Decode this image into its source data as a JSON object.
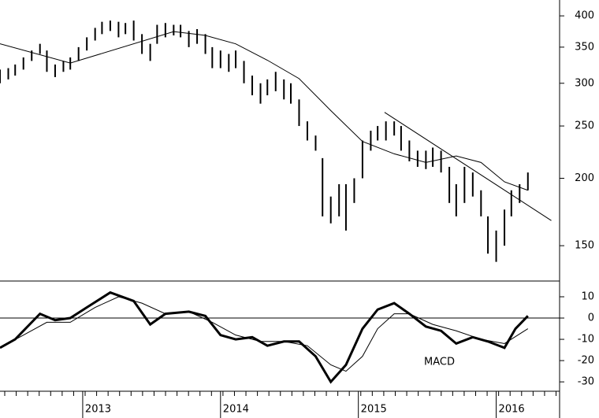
{
  "chart_data": [
    {
      "type": "hilo",
      "log": true,
      "color": "#000",
      "ylim": [
        129,
        428
      ],
      "yticks": [
        150,
        200,
        250,
        300,
        350,
        400
      ],
      "xlim": [
        2012.4,
        2016.46
      ],
      "x": [
        2012.4,
        2012.46,
        2012.51,
        2012.57,
        2012.63,
        2012.69,
        2012.74,
        2012.8,
        2012.86,
        2012.91,
        2012.97,
        2013.03,
        2013.09,
        2013.14,
        2013.2,
        2013.26,
        2013.31,
        2013.37,
        2013.43,
        2013.49,
        2013.54,
        2013.6,
        2013.66,
        2013.71,
        2013.77,
        2013.83,
        2013.89,
        2013.94,
        2014.0,
        2014.06,
        2014.11,
        2014.17,
        2014.23,
        2014.29,
        2014.34,
        2014.4,
        2014.46,
        2014.51,
        2014.57,
        2014.63,
        2014.69,
        2014.74,
        2014.8,
        2014.86,
        2014.91,
        2014.97,
        2015.03,
        2015.09,
        2015.14,
        2015.2,
        2015.26,
        2015.31,
        2015.37,
        2015.43,
        2015.49,
        2015.54,
        2015.6,
        2015.66,
        2015.71,
        2015.77,
        2015.83,
        2015.89,
        2015.94,
        2016.0,
        2016.06,
        2016.11,
        2016.17,
        2016.23
      ],
      "high": [
        318,
        320,
        325,
        335,
        345,
        355,
        345,
        325,
        330,
        335,
        350,
        365,
        380,
        390,
        392,
        390,
        388,
        392,
        370,
        355,
        385,
        388,
        385,
        385,
        375,
        378,
        370,
        350,
        345,
        340,
        345,
        330,
        310,
        300,
        305,
        315,
        305,
        300,
        280,
        255,
        240,
        218,
        185,
        195,
        195,
        200,
        235,
        245,
        250,
        255,
        255,
        250,
        235,
        225,
        225,
        228,
        225,
        210,
        195,
        210,
        205,
        190,
        170,
        160,
        175,
        190,
        195,
        205
      ],
      "low": [
        300,
        305,
        310,
        318,
        330,
        340,
        315,
        308,
        315,
        318,
        330,
        345,
        360,
        370,
        375,
        365,
        370,
        360,
        340,
        330,
        355,
        365,
        368,
        365,
        350,
        355,
        340,
        320,
        320,
        315,
        320,
        300,
        285,
        275,
        285,
        290,
        280,
        275,
        250,
        235,
        225,
        170,
        165,
        170,
        160,
        180,
        200,
        225,
        235,
        235,
        240,
        225,
        215,
        210,
        208,
        210,
        205,
        180,
        170,
        180,
        185,
        170,
        145,
        140,
        150,
        170,
        180,
        190
      ],
      "ma": {
        "x": [
          2012.4,
          2012.91,
          2013.66,
          2013.89,
          2014.11,
          2014.34,
          2014.57,
          2014.8,
          2015.03,
          2015.26,
          2015.49,
          2015.71,
          2015.89,
          2016.06,
          2016.23
        ],
        "values": [
          355,
          327,
          374,
          368,
          355,
          331,
          306,
          267,
          234,
          222,
          214,
          220,
          214,
          197,
          190
        ]
      },
      "trendline": {
        "x": [
          2015.19,
          2016.4
        ],
        "values": [
          265,
          167
        ]
      }
    },
    {
      "type": "line",
      "annotation": "MACD",
      "ylim": [
        -34.4,
        17.4
      ],
      "yticks": [
        10,
        0,
        -10,
        -20,
        -30
      ],
      "hline": 0,
      "xlim": [
        2012.4,
        2016.46
      ],
      "xticks": [
        2013,
        2014,
        2015,
        2016
      ],
      "macd": {
        "x": [
          2012.4,
          2012.51,
          2012.69,
          2012.8,
          2012.91,
          2013.03,
          2013.2,
          2013.37,
          2013.49,
          2013.6,
          2013.77,
          2013.89,
          2014.0,
          2014.11,
          2014.23,
          2014.34,
          2014.46,
          2014.57,
          2014.69,
          2014.8,
          2014.91,
          2015.03,
          2015.14,
          2015.26,
          2015.37,
          2015.49,
          2015.6,
          2015.71,
          2015.83,
          2015.94,
          2016.06,
          2016.14,
          2016.23
        ],
        "values": [
          -14,
          -10,
          2,
          -1,
          0,
          5,
          12,
          8,
          -3,
          2,
          3,
          1,
          -8,
          -10,
          -9,
          -13,
          -11,
          -11,
          -18,
          -30,
          -22,
          -5,
          4,
          7,
          2,
          -4,
          -6,
          -12,
          -9,
          -11,
          -14,
          -5,
          1
        ]
      },
      "signal": {
        "x": [
          2012.4,
          2012.57,
          2012.74,
          2012.91,
          2013.09,
          2013.26,
          2013.43,
          2013.6,
          2013.77,
          2013.94,
          2014.11,
          2014.29,
          2014.46,
          2014.63,
          2014.8,
          2014.91,
          2015.03,
          2015.14,
          2015.26,
          2015.37,
          2015.54,
          2015.71,
          2015.89,
          2016.06,
          2016.23
        ],
        "values": [
          -14,
          -8,
          -2,
          -2,
          5,
          10,
          7,
          2,
          3,
          -2,
          -8,
          -11,
          -11,
          -13,
          -22,
          -25,
          -18,
          -5,
          2,
          2,
          -3,
          -6,
          -10,
          -12,
          -5
        ]
      }
    }
  ]
}
